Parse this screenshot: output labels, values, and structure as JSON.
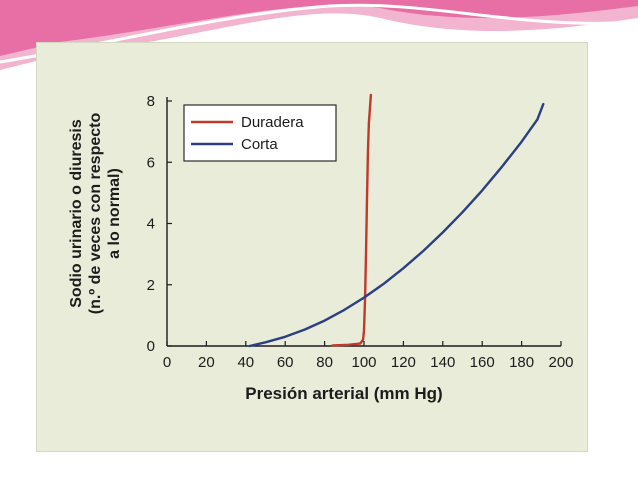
{
  "colors": {
    "panel_background": "#e8ecd9",
    "duradera": "#c0392b",
    "corta": "#2b3f82",
    "banner_pink": "#e76fa5",
    "banner_light": "#f3b4cf"
  },
  "chart_data": {
    "type": "line",
    "xlabel": "Presión arterial (mm Hg)",
    "ylabel_lines": [
      "Sodio urinario o diuresis",
      "(n.º de veces con respecto",
      "a lo normal)"
    ],
    "xlim": [
      0,
      200
    ],
    "ylim": [
      0,
      8
    ],
    "x_ticks": [
      0,
      20,
      40,
      60,
      80,
      100,
      120,
      140,
      160,
      180,
      200
    ],
    "y_ticks": [
      0,
      2,
      4,
      6,
      8
    ],
    "grid": false,
    "legend_position": "top-left",
    "series": [
      {
        "name": "Duradera",
        "color": "#c0392b",
        "points": [
          [
            84,
            0.02
          ],
          [
            92,
            0.04
          ],
          [
            98,
            0.08
          ],
          [
            99.5,
            0.2
          ],
          [
            100,
            0.5
          ],
          [
            100.5,
            1.5
          ],
          [
            101,
            3.0
          ],
          [
            101.5,
            4.8
          ],
          [
            102,
            6.3
          ],
          [
            102.5,
            7.3
          ],
          [
            103.5,
            8.2
          ]
        ]
      },
      {
        "name": "Corta",
        "color": "#2b3f82",
        "points": [
          [
            42,
            0.0
          ],
          [
            50,
            0.12
          ],
          [
            60,
            0.3
          ],
          [
            70,
            0.54
          ],
          [
            80,
            0.83
          ],
          [
            90,
            1.18
          ],
          [
            100,
            1.58
          ],
          [
            110,
            2.03
          ],
          [
            120,
            2.54
          ],
          [
            130,
            3.1
          ],
          [
            140,
            3.71
          ],
          [
            150,
            4.37
          ],
          [
            160,
            5.08
          ],
          [
            170,
            5.85
          ],
          [
            180,
            6.67
          ],
          [
            188,
            7.4
          ],
          [
            191,
            7.9
          ]
        ]
      }
    ]
  }
}
